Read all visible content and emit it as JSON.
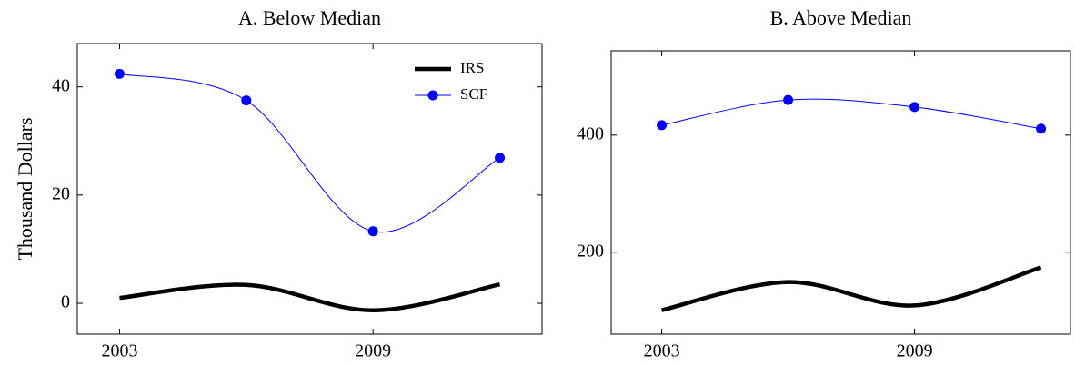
{
  "chart_data": [
    {
      "type": "line",
      "title": "A. Below Median",
      "y_label": "Thousand Dollars",
      "x": [
        2003,
        2006,
        2009,
        2012
      ],
      "xlim": [
        2002,
        2013
      ],
      "xticks": [
        2003,
        2009
      ],
      "ylim": [
        -5.7,
        48
      ],
      "yticks": [
        0,
        20,
        40
      ],
      "smooth": true,
      "legend": "top-right",
      "series": [
        {
          "name": "IRS",
          "color": "#000000",
          "marker": false,
          "values": [
            1.0,
            3.4,
            -1.3,
            3.5
          ]
        },
        {
          "name": "SCF",
          "color": "#0000ff",
          "marker": true,
          "values": [
            42.4,
            37.5,
            13.3,
            26.9
          ]
        }
      ]
    },
    {
      "type": "line",
      "title": "B. Above Median",
      "x": [
        2003,
        2006,
        2009,
        2012
      ],
      "xlim": [
        2001.8,
        2012.7
      ],
      "xticks": [
        2003,
        2009
      ],
      "ylim": [
        60,
        544
      ],
      "yticks": [
        200,
        400
      ],
      "smooth": true,
      "series": [
        {
          "name": "IRS",
          "color": "#000000",
          "marker": false,
          "values": [
            101,
            149,
            109,
            174
          ]
        },
        {
          "name": "SCF",
          "color": "#0000ff",
          "marker": true,
          "values": [
            417,
            460,
            448,
            411
          ]
        }
      ]
    }
  ]
}
